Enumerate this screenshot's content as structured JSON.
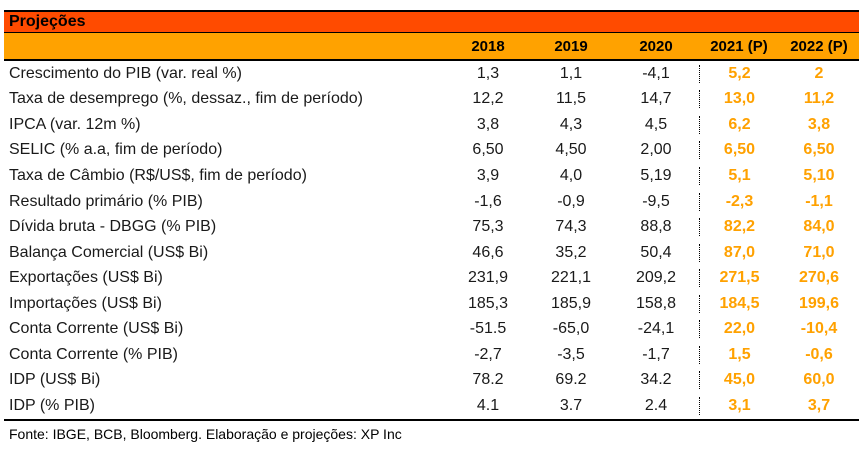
{
  "chart_data": {
    "type": "table",
    "title": "Projeções",
    "columns": [
      "2018",
      "2019",
      "2020",
      "2021 (P)",
      "2022 (P)"
    ],
    "projected_columns": [
      "2021 (P)",
      "2022 (P)"
    ],
    "rows": [
      {
        "label": "Crescimento do PIB (var. real %)",
        "values": [
          "1,3",
          "1,1",
          "-4,1",
          "5,2",
          "2"
        ],
        "numeric": [
          1.3,
          1.1,
          -4.1,
          5.2,
          2.0
        ]
      },
      {
        "label": "Taxa de desemprego (%, dessaz., fim de período)",
        "values": [
          "12,2",
          "11,5",
          "14,7",
          "13,0",
          "11,2"
        ],
        "numeric": [
          12.2,
          11.5,
          14.7,
          13.0,
          11.2
        ]
      },
      {
        "label": "IPCA (var. 12m %)",
        "values": [
          "3,8",
          "4,3",
          "4,5",
          "6,2",
          "3,8"
        ],
        "numeric": [
          3.8,
          4.3,
          4.5,
          6.2,
          3.8
        ]
      },
      {
        "label": "SELIC (% a.a, fim de período)",
        "values": [
          "6,50",
          "4,50",
          "2,00",
          "6,50",
          "6,50"
        ],
        "numeric": [
          6.5,
          4.5,
          2.0,
          6.5,
          6.5
        ]
      },
      {
        "label": "Taxa de Câmbio (R$/US$, fim de período)",
        "values": [
          "3,9",
          "4,0",
          "5,19",
          "5,1",
          "5,10"
        ],
        "numeric": [
          3.9,
          4.0,
          5.19,
          5.1,
          5.1
        ]
      },
      {
        "label": "Resultado primário (% PIB)",
        "values": [
          "-1,6",
          "-0,9",
          "-9,5",
          "-2,3",
          "-1,1"
        ],
        "numeric": [
          -1.6,
          -0.9,
          -9.5,
          -2.3,
          -1.1
        ]
      },
      {
        "label": "Dívida bruta - DBGG (% PIB)",
        "values": [
          "75,3",
          "74,3",
          "88,8",
          "82,2",
          "84,0"
        ],
        "numeric": [
          75.3,
          74.3,
          88.8,
          82.2,
          84.0
        ]
      },
      {
        "label": "Balança Comercial (US$ Bi)",
        "values": [
          "46,6",
          "35,2",
          "50,4",
          "87,0",
          "71,0"
        ],
        "numeric": [
          46.6,
          35.2,
          50.4,
          87.0,
          71.0
        ]
      },
      {
        "label": "Exportações (US$ Bi)",
        "values": [
          "231,9",
          "221,1",
          "209,2",
          "271,5",
          "270,6"
        ],
        "numeric": [
          231.9,
          221.1,
          209.2,
          271.5,
          270.6
        ]
      },
      {
        "label": "Importações (US$ Bi)",
        "values": [
          "185,3",
          "185,9",
          "158,8",
          "184,5",
          "199,6"
        ],
        "numeric": [
          185.3,
          185.9,
          158.8,
          184.5,
          199.6
        ]
      },
      {
        "label": "Conta Corrente (US$ Bi)",
        "values": [
          "-51.5",
          "-65,0",
          "-24,1",
          "22,0",
          "-10,4"
        ],
        "numeric": [
          -51.5,
          -65.0,
          -24.1,
          22.0,
          -10.4
        ]
      },
      {
        "label": "Conta Corrente (% PIB)",
        "values": [
          "-2,7",
          "-3,5",
          "-1,7",
          "1,5",
          "-0,6"
        ],
        "numeric": [
          -2.7,
          -3.5,
          -1.7,
          1.5,
          -0.6
        ]
      },
      {
        "label": "IDP (US$ Bi)",
        "values": [
          "78.2",
          "69.2",
          "34.2",
          "45,0",
          "60,0"
        ],
        "numeric": [
          78.2,
          69.2,
          34.2,
          45.0,
          60.0
        ]
      },
      {
        "label": "IDP (% PIB)",
        "values": [
          "4.1",
          "3.7",
          "2.4",
          "3,1",
          "3,7"
        ],
        "numeric": [
          4.1,
          3.7,
          2.4,
          3.1,
          3.7
        ]
      }
    ],
    "source_note": "Fonte: IBGE, BCB, Bloomberg. Elaboração e projeções: XP Inc",
    "colors": {
      "title_band": "#ff4b00",
      "year_band": "#ffa200",
      "projected_text": "#ffa100",
      "body_text": "#1a1a1a",
      "border": "#000000"
    },
    "layout": {
      "projected_separator": "dotted-vertical-line-before-2021"
    }
  }
}
